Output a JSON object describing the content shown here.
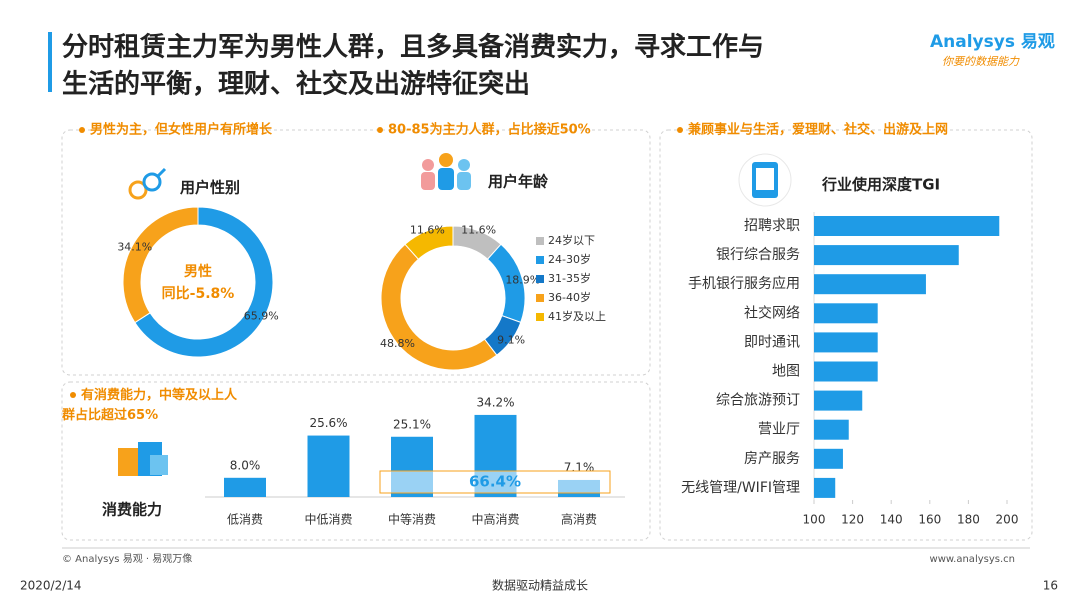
{
  "title": [
    "分时租赁主力军为男性人群，且多具备消费实力，寻求工作与",
    "生活的平衡，理财、社交及出游特征突出"
  ],
  "logo": {
    "brand": "Analysys 易观",
    "slogan": "你要的数据能力"
  },
  "footer": {
    "copyright": "© Analysys 易观 · 易观万像",
    "url": "www.analysys.cn",
    "date": "2020/2/14",
    "center": "数据驱动精益成长",
    "page": "16"
  },
  "chart_data": [
    {
      "type": "donut",
      "heading": "男性为主，但女性用户有所增长",
      "title": "用户性别",
      "annotation": [
        "男性",
        "同比-5.8%"
      ],
      "values": [
        65.9,
        34.1
      ],
      "value_labels": [
        "65.9%",
        "34.1%"
      ],
      "colors": [
        "#1f9be6",
        "#f7a21b"
      ]
    },
    {
      "type": "donut",
      "heading": "80-85为主力人群，占比接近50%",
      "title": "用户年龄",
      "categories": [
        "24岁以下",
        "24-30岁",
        "31-35岁",
        "36-40岁",
        "41岁及以上"
      ],
      "values": [
        11.6,
        18.9,
        9.1,
        48.8,
        11.6
      ],
      "value_labels": [
        "11.6%",
        "18.9%",
        "9.1%",
        "48.8%",
        "11.6%"
      ],
      "colors": [
        "#bfbfbf",
        "#1f9be6",
        "#1478c8",
        "#f7a21b",
        "#f5b800"
      ]
    },
    {
      "type": "bar",
      "heading": "有消费能力，中等及以上人群占比超过65%",
      "title": "消费能力",
      "categories": [
        "低消费",
        "中低消费",
        "中等消费",
        "中高消费",
        "高消费"
      ],
      "values": [
        8.0,
        25.6,
        25.1,
        34.2,
        7.1
      ],
      "value_labels": [
        "8.0%",
        "25.6%",
        "25.1%",
        "34.2%",
        "7.1%"
      ],
      "color": "#1f9be6",
      "annotation": "66.4%"
    },
    {
      "type": "hbar",
      "heading": "兼顾事业与生活，爱理财、社交、出游及上网",
      "title": "行业使用深度TGI",
      "categories": [
        "招聘求职",
        "银行综合服务",
        "手机银行服务应用",
        "社交网络",
        "即时通讯",
        "地图",
        "综合旅游预订",
        "营业厅",
        "房产服务",
        "无线管理/WIFI管理"
      ],
      "values": [
        196,
        175,
        158,
        133,
        133,
        133,
        125,
        118,
        115,
        111
      ],
      "color": "#1f9be6",
      "xlim": [
        100,
        200
      ],
      "xticks": [
        100,
        120,
        140,
        160,
        180,
        200
      ]
    }
  ]
}
